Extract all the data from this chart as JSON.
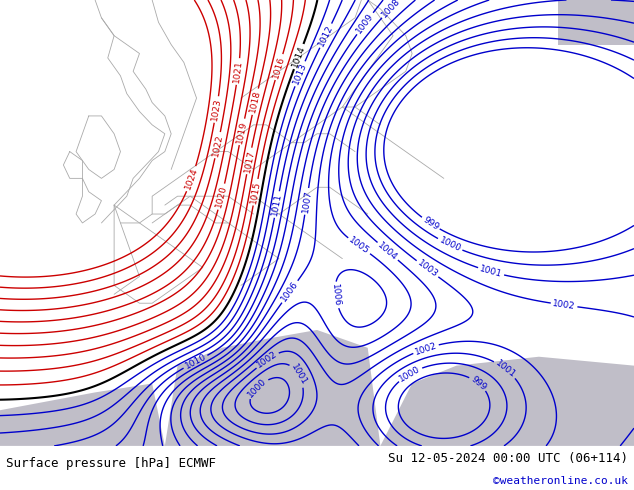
{
  "title_left": "Surface pressure [hPa] ECMWF",
  "title_right": "Su 12-05-2024 00:00 UTC (06+114)",
  "copyright": "©weatheronline.co.uk",
  "bg_color": "#aad4a0",
  "sea_color": "#c0bec8",
  "text_color_left": "#000000",
  "text_color_right": "#000000",
  "text_color_copy": "#0000cc",
  "contour_color_red": "#cc0000",
  "contour_color_blue": "#0000cc",
  "contour_color_black": "#000000",
  "footer_bg": "#ffffff",
  "figsize": [
    6.34,
    4.9
  ],
  "dpi": 100,
  "levels_blue": [
    999,
    1000,
    1001,
    1002,
    1003,
    1004,
    1005,
    1006,
    1007,
    1008,
    1009,
    1010,
    1011,
    1012,
    1013
  ],
  "levels_black": [
    1014
  ],
  "levels_red": [
    1015,
    1016,
    1017,
    1018,
    1019,
    1020,
    1021,
    1022,
    1023,
    1024
  ]
}
